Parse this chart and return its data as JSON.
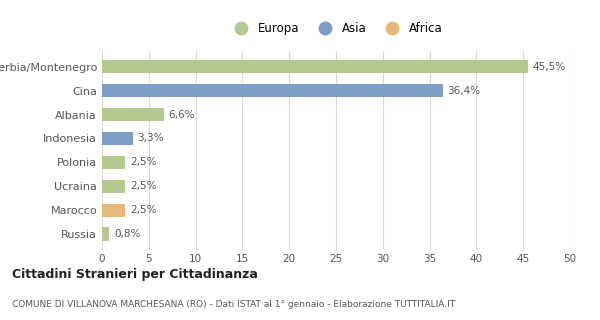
{
  "categories": [
    "Serbia/Montenegro",
    "Cina",
    "Albania",
    "Indonesia",
    "Polonia",
    "Ucraina",
    "Marocco",
    "Russia"
  ],
  "values": [
    45.5,
    36.4,
    6.6,
    3.3,
    2.5,
    2.5,
    2.5,
    0.8
  ],
  "labels": [
    "45,5%",
    "36,4%",
    "6,6%",
    "3,3%",
    "2,5%",
    "2,5%",
    "2,5%",
    "0,8%"
  ],
  "colors": [
    "#b5c98e",
    "#7b9fc7",
    "#b5c98e",
    "#7b9fc7",
    "#b5c98e",
    "#b5c98e",
    "#e8b87a",
    "#b5c98e"
  ],
  "legend_items": [
    {
      "label": "Europa",
      "color": "#b5c98e"
    },
    {
      "label": "Asia",
      "color": "#7b9fc7"
    },
    {
      "label": "Africa",
      "color": "#e8b87a"
    }
  ],
  "title": "Cittadini Stranieri per Cittadinanza",
  "subtitle": "COMUNE DI VILLANOVA MARCHESANA (RO) - Dati ISTAT al 1° gennaio - Elaborazione TUTTITALIA.IT",
  "xlim": [
    0,
    50
  ],
  "xticks": [
    0,
    5,
    10,
    15,
    20,
    25,
    30,
    35,
    40,
    45,
    50
  ],
  "bg_color": "#ffffff",
  "plot_bg_color": "#ffffff",
  "grid_color": "#d8d8d8",
  "bar_height": 0.55,
  "label_fontsize": 7.5,
  "ytick_fontsize": 8,
  "xtick_fontsize": 7.5
}
